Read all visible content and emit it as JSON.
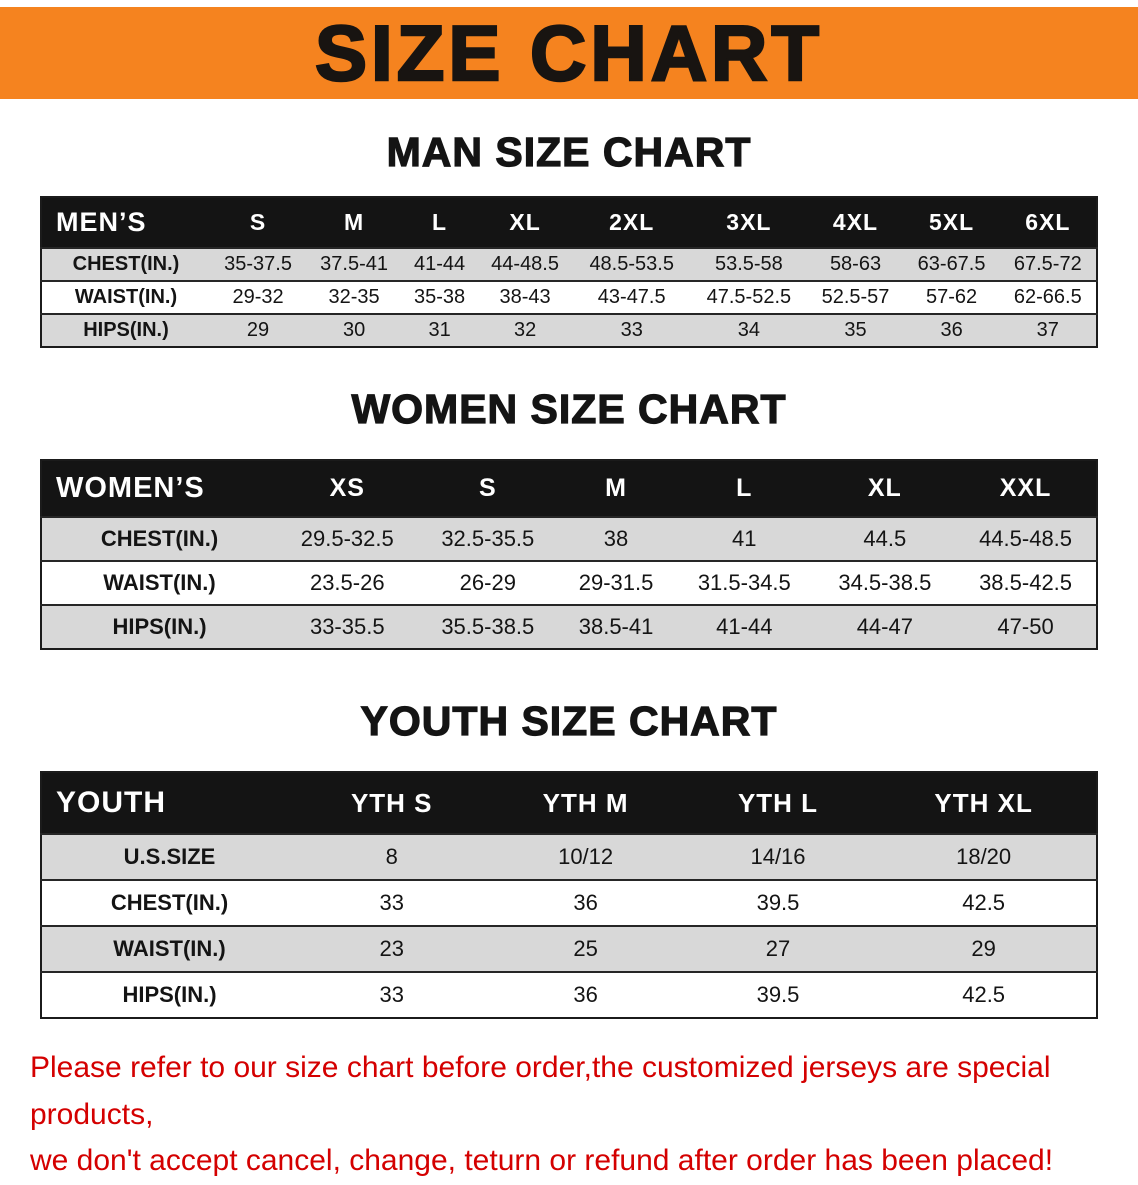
{
  "banner": {
    "title": "SIZE CHART"
  },
  "colors": {
    "banner_bg": "#f5831f",
    "header_bg": "#141414",
    "row_gray": "#d8d8d8",
    "footer_red": "#d40000"
  },
  "sections": [
    {
      "heading": "MAN SIZE CHART",
      "table": {
        "header": [
          "MEN’S",
          "S",
          "M",
          "L",
          "XL",
          "2XL",
          "3XL",
          "4XL",
          "5XL",
          "6XL"
        ],
        "rows": [
          {
            "label": "CHEST(IN.)",
            "values": [
              "35-37.5",
              "37.5-41",
              "41-44",
              "44-48.5",
              "48.5-53.5",
              "53.5-58",
              "58-63",
              "63-67.5",
              "67.5-72"
            ]
          },
          {
            "label": "WAIST(IN.)",
            "values": [
              "29-32",
              "32-35",
              "35-38",
              "38-43",
              "43-47.5",
              "47.5-52.5",
              "52.5-57",
              "57-62",
              "62-66.5"
            ]
          },
          {
            "label": "HIPS(IN.)",
            "values": [
              "29",
              "30",
              "31",
              "32",
              "33",
              "34",
              "35",
              "36",
              "37"
            ]
          }
        ]
      }
    },
    {
      "heading": "WOMEN SIZE CHART",
      "table": {
        "header": [
          "WOMEN’S",
          "XS",
          "S",
          "M",
          "L",
          "XL",
          "XXL"
        ],
        "rows": [
          {
            "label": "CHEST(IN.)",
            "values": [
              "29.5-32.5",
              "32.5-35.5",
              "38",
              "41",
              "44.5",
              "44.5-48.5"
            ]
          },
          {
            "label": "WAIST(IN.)",
            "values": [
              "23.5-26",
              "26-29",
              "29-31.5",
              "31.5-34.5",
              "34.5-38.5",
              "38.5-42.5"
            ]
          },
          {
            "label": "HIPS(IN.)",
            "values": [
              "33-35.5",
              "35.5-38.5",
              "38.5-41",
              "41-44",
              "44-47",
              "47-50"
            ]
          }
        ]
      }
    },
    {
      "heading": "YOUTH SIZE CHART",
      "table": {
        "header": [
          "YOUTH",
          "YTH S",
          "YTH M",
          "YTH L",
          "YTH XL"
        ],
        "rows": [
          {
            "label": "U.S.SIZE",
            "values": [
              "8",
              "10/12",
              "14/16",
              "18/20"
            ]
          },
          {
            "label": "CHEST(IN.)",
            "values": [
              "33",
              "36",
              "39.5",
              "42.5"
            ]
          },
          {
            "label": "WAIST(IN.)",
            "values": [
              "23",
              "25",
              "27",
              "29"
            ]
          },
          {
            "label": "HIPS(IN.)",
            "values": [
              "33",
              "36",
              "39.5",
              "42.5"
            ]
          }
        ]
      }
    }
  ],
  "footer": {
    "line1": "Please refer to our size chart before order,the customized jerseys are special products,",
    "line2": "we don't accept cancel, change, teturn or refund after order has been placed!"
  }
}
